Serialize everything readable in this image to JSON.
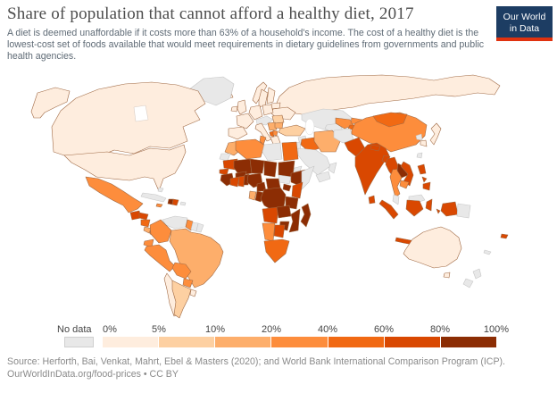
{
  "header": {
    "title": "Share of population that cannot afford a healthy diet, 2017",
    "subtitle": "A diet is deemed unaffordable if it costs more than 63% of a household's income. The cost of a healthy diet is the lowest-cost set of foods available that would meet requirements in dietary guidelines from governments and public health agencies.",
    "logo": {
      "line1": "Our World",
      "line2": "in Data",
      "bg": "#1d3d63",
      "accent": "#e0320f"
    }
  },
  "legend": {
    "no_data_label": "No data",
    "no_data_color": "#e8e8e8",
    "ticks": [
      "0%",
      "5%",
      "10%",
      "20%",
      "40%",
      "60%",
      "80%",
      "100%"
    ],
    "bin_colors": [
      "#feedde",
      "#fdd0a2",
      "#fdae6b",
      "#fd8d3c",
      "#f16913",
      "#d94801",
      "#8c2d04"
    ]
  },
  "footer": {
    "source_line1": "Source: Herforth, Bai, Venkat, Mahrt, Ebel & Masters (2020); and World Bank International Comparison Program (ICP).",
    "source_line2": "OurWorldInData.org/food-prices • CC BY"
  },
  "chart_data": {
    "type": "choropleth-map",
    "title": "Share of population that cannot afford a healthy diet",
    "year": 2017,
    "unit": "% of population",
    "legend_position": "bottom",
    "bin_thresholds": [
      0,
      5,
      10,
      20,
      40,
      60,
      80,
      100
    ],
    "bins": [
      {
        "range": "0-5%",
        "color": "#feedde"
      },
      {
        "range": "5-10%",
        "color": "#fdd0a2"
      },
      {
        "range": "10-20%",
        "color": "#fdae6b"
      },
      {
        "range": "20-40%",
        "color": "#fd8d3c"
      },
      {
        "range": "40-60%",
        "color": "#f16913"
      },
      {
        "range": "60-80%",
        "color": "#d94801"
      },
      {
        "range": "80-100%",
        "color": "#8c2d04"
      }
    ],
    "countries": {
      "greenland": "nd",
      "alaska": 0,
      "canada": 0,
      "usa": 0,
      "mexico": 3,
      "guatemala": 5,
      "honduras": 5,
      "nicaragua": 4,
      "costa-rica": 2,
      "panama": 3,
      "cuba": "nd",
      "jamaica": 3,
      "haiti": 6,
      "dominican-republic": 5,
      "puerto-rico": "nd",
      "bahamas": "nd",
      "venezuela": "nd",
      "colombia": 3,
      "guyana": 3,
      "suriname": "nd",
      "french-guiana": "nd",
      "ecuador": 3,
      "peru": 3,
      "brazil": 2,
      "bolivia": 3,
      "paraguay": 3,
      "chile": 0,
      "argentina": 1,
      "uruguay": 0,
      "iceland": 0,
      "ireland": 0,
      "united-kingdom": 0,
      "norway": 0,
      "sweden": 0,
      "finland": 0,
      "baltics": "nd",
      "france": 0,
      "iberia": 0,
      "germany": 0,
      "poland": 0,
      "central-europe": "nd",
      "italy": 0,
      "serbia": 2,
      "albania": 4,
      "north-macedonia": 3,
      "greece": 0,
      "romania": 1,
      "bulgaria": 2,
      "ukraine": 0,
      "belarus": 0,
      "russia": 0,
      "turkey": 1,
      "syria": "nd",
      "israel-jordan": "nd",
      "iraq": 4,
      "iran": 2,
      "saudi-arabia": "nd",
      "yemen": "nd",
      "oman": "nd",
      "kazakhstan": "nd",
      "turkmenistan": "nd",
      "uzbekistan": 3,
      "kyrgyzstan": 3,
      "tajikistan": 4,
      "afghanistan": "nd",
      "pakistan": 5,
      "india": 5,
      "nepal": 5,
      "bangladesh": 5,
      "sri-lanka": 5,
      "china": 3,
      "mongolia": 4,
      "north-korea": "nd",
      "south-korea": 0,
      "japan": 0,
      "taiwan": "nd",
      "myanmar": 5,
      "thailand": 3,
      "laos": 6,
      "vietnam": 5,
      "cambodia": 3,
      "malaysia": "nd",
      "malaysia-borneo": "nd",
      "indonesia-sumatra": 5,
      "indonesia-java": 5,
      "indonesia-kalimantan": 5,
      "indonesia-sulawesi": 5,
      "indonesia-maluku": 5,
      "indonesia-lesser-sunda": 5,
      "indonesia-papua": 5,
      "papua-new-guinea": "nd",
      "philippines-luzon": 5,
      "philippines-visayas": 5,
      "philippines-mindanao": 5,
      "morocco": 2,
      "western-sahara": "nd",
      "algeria": 3,
      "tunisia": 3,
      "libya": "nd",
      "egypt": 4,
      "mauritania": 5,
      "mali": 6,
      "niger": 6,
      "chad": 6,
      "sudan": 6,
      "south-sudan": "nd",
      "eritrea": "nd",
      "ethiopia": 6,
      "somalia": "nd",
      "senegal": 5,
      "guinea": 6,
      "cote-divoire": 5,
      "ghana": 5,
      "togo-benin": 6,
      "burkina-faso": 6,
      "nigeria": 6,
      "cameroon": 6,
      "central-african-republic": 6,
      "congo": 6,
      "gabon": 2,
      "drc": 6,
      "uganda": 6,
      "kenya": 5,
      "tanzania": 6,
      "angola": 5,
      "zambia": 6,
      "mozambique": 6,
      "zimbabwe": 6,
      "namibia": 3,
      "botswana": 5,
      "south-africa": 4,
      "madagascar": 6,
      "australia": 0,
      "tasmania": 0,
      "new-zealand": "nd",
      "fiji": 5,
      "new-caledonia": "nd"
    }
  }
}
